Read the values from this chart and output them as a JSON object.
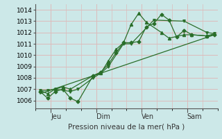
{
  "xlabel": "Pression niveau de la mer( hPa )",
  "bg_color": "#cce8e8",
  "grid_color": "#ddbbbb",
  "line_color": "#2a6e2a",
  "ylim": [
    1005.3,
    1014.5
  ],
  "yticks": [
    1006,
    1007,
    1008,
    1009,
    1010,
    1011,
    1012,
    1013,
    1014
  ],
  "day_labels": [
    "Jeu",
    "Dim",
    "Ven",
    "Sam"
  ],
  "day_ticks": [
    1,
    4,
    7,
    10
  ],
  "xlim": [
    0.0,
    12.0
  ],
  "series1_x": [
    0.3,
    0.8,
    1.3,
    1.8,
    2.3,
    2.8,
    3.8,
    4.3,
    4.8,
    5.3,
    5.8,
    6.3,
    6.8,
    7.3,
    7.8,
    8.3,
    8.8,
    9.3,
    9.8,
    10.3,
    11.3,
    11.8
  ],
  "series1_y": [
    1006.8,
    1006.2,
    1006.8,
    1007.0,
    1006.2,
    1005.9,
    1008.2,
    1008.5,
    1009.2,
    1010.2,
    1011.1,
    1011.1,
    1011.2,
    1012.5,
    1012.8,
    1013.6,
    1013.1,
    1011.6,
    1012.2,
    1011.8,
    1011.7,
    1011.8
  ],
  "series2_x": [
    0.3,
    0.8,
    1.3,
    1.8,
    2.3,
    3.8,
    4.3,
    4.8,
    5.3,
    5.8,
    6.3,
    6.8,
    7.3,
    8.3,
    8.8,
    9.8,
    10.3,
    11.3,
    11.8
  ],
  "series2_y": [
    1006.9,
    1006.6,
    1007.0,
    1007.2,
    1007.0,
    1008.2,
    1008.4,
    1009.5,
    1010.5,
    1011.1,
    1012.7,
    1013.7,
    1012.9,
    1012.0,
    1011.5,
    1011.8,
    1011.8,
    1011.7,
    1011.9
  ],
  "trend_x": [
    0.3,
    11.8
  ],
  "trend_y": [
    1006.6,
    1011.8
  ],
  "series3_x": [
    0.3,
    0.8,
    1.3,
    1.8,
    2.3,
    2.8,
    3.8,
    4.3,
    4.8,
    5.8,
    6.3,
    7.8,
    9.8,
    11.3,
    11.8
  ],
  "series3_y": [
    1006.9,
    1006.9,
    1007.0,
    1006.9,
    1006.8,
    1007.0,
    1008.0,
    1008.4,
    1009.0,
    1011.0,
    1011.0,
    1013.1,
    1013.0,
    1012.0,
    1011.9
  ]
}
